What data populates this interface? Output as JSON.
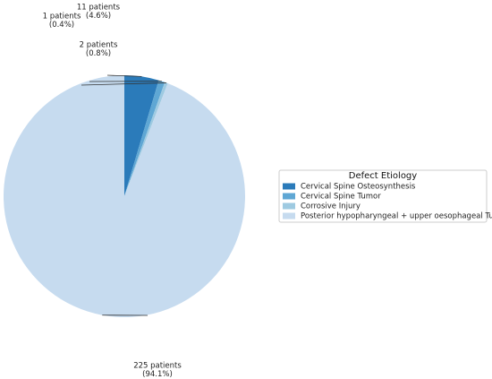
{
  "chart_data": {
    "type": "pie",
    "title": "",
    "start_angle_deg": 90,
    "direction": "clockwise",
    "slices": [
      {
        "label": "Cervical Spine Osteosynthesis",
        "value": 11,
        "percent": 4.6,
        "color": "#2b7bba",
        "annotation": [
          "11 patients",
          "(4.6%)"
        ]
      },
      {
        "label": "Cervical Spine Tumor",
        "value": 2,
        "percent": 0.8,
        "color": "#5fa7d4",
        "annotation": [
          "2 patients",
          "(0.8%)"
        ]
      },
      {
        "label": "Corrosive Injury",
        "value": 1,
        "percent": 0.4,
        "color": "#9ecae1",
        "annotation": [
          "1 patients",
          "(0.4%)"
        ]
      },
      {
        "label": "Posterior hypopharyngeal + upper oesophageal Tumor",
        "value": 225,
        "percent": 94.1,
        "color": "#c6dbef",
        "annotation": [
          "225 patients",
          "(94.1%)"
        ]
      }
    ],
    "legend": {
      "title": "Defect Etiology",
      "placement": "center-right"
    }
  }
}
